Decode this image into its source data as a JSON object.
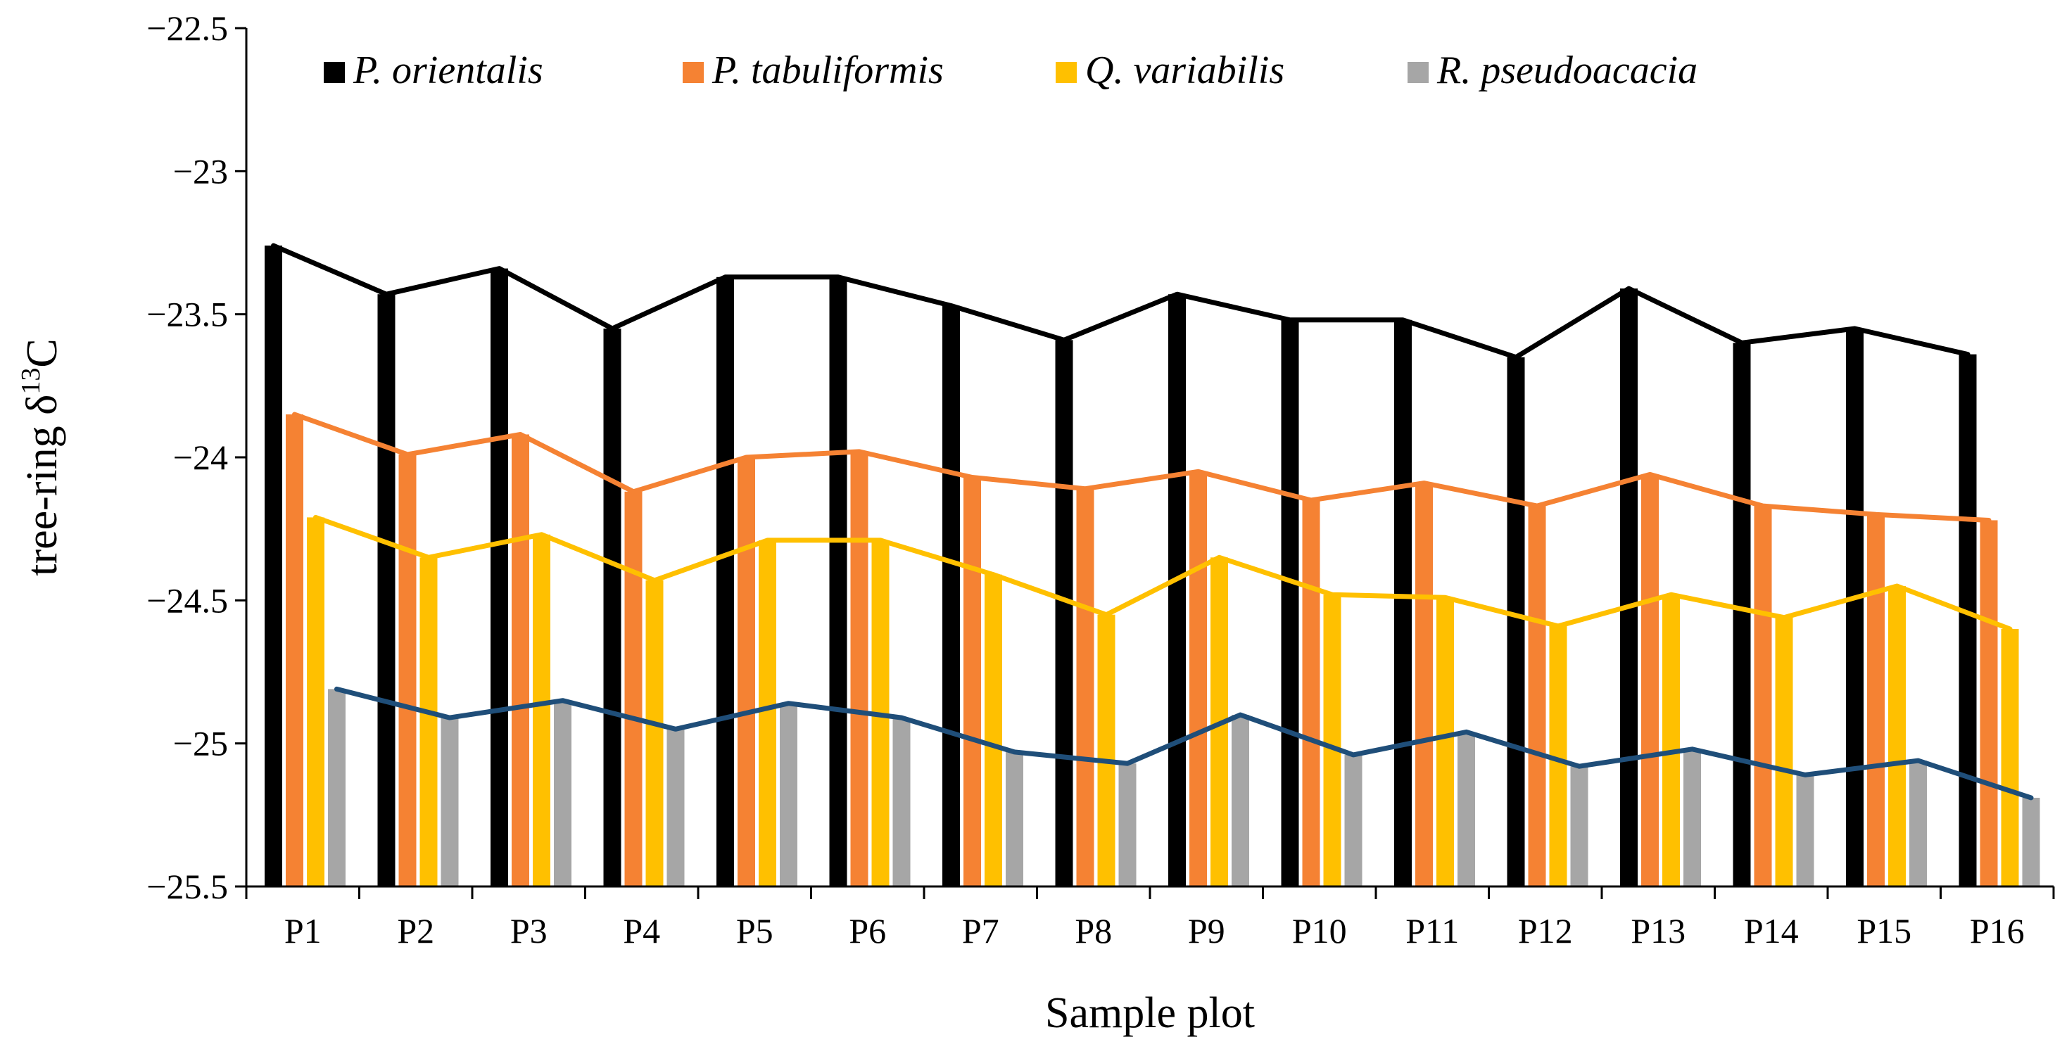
{
  "chart_data": {
    "type": "bar",
    "title": "",
    "xlabel": "Sample plot",
    "ylabel": "tree-ring δ13C",
    "ylabel_parts": {
      "prefix": "tree-ring δ",
      "superscript": "13",
      "suffix": "C"
    },
    "ylim": [
      -25.5,
      -22.5
    ],
    "yticks": [
      -22.5,
      -23,
      -23.5,
      -24,
      -24.5,
      -25,
      -25.5
    ],
    "ytick_labels": [
      "−22.5",
      "−23",
      "−23.5",
      "−24",
      "−24.5",
      "−25",
      "−25.5"
    ],
    "grid": false,
    "legend_position": "top",
    "categories": [
      "P1",
      "P2",
      "P3",
      "P4",
      "P5",
      "P6",
      "P7",
      "P8",
      "P9",
      "P10",
      "P11",
      "P12",
      "P13",
      "P14",
      "P15",
      "P16"
    ],
    "series": [
      {
        "name": "P. orientalis",
        "color": "#000000",
        "line_color": "#000000",
        "values": [
          -23.26,
          -23.43,
          -23.34,
          -23.55,
          -23.37,
          -23.37,
          -23.47,
          -23.59,
          -23.43,
          -23.52,
          -23.52,
          -23.65,
          -23.41,
          -23.6,
          -23.55,
          -23.64
        ]
      },
      {
        "name": "P. tabuliformis",
        "color": "#F58233",
        "line_color": "#F58233",
        "values": [
          -23.85,
          -23.99,
          -23.92,
          -24.12,
          -24.0,
          -23.98,
          -24.07,
          -24.11,
          -24.05,
          -24.15,
          -24.09,
          -24.17,
          -24.06,
          -24.17,
          -24.2,
          -24.22
        ]
      },
      {
        "name": "Q. variabilis",
        "color": "#FFC000",
        "line_color": "#FFC000",
        "values": [
          -24.21,
          -24.35,
          -24.27,
          -24.43,
          -24.29,
          -24.29,
          -24.41,
          -24.55,
          -24.35,
          -24.48,
          -24.49,
          -24.59,
          -24.48,
          -24.56,
          -24.45,
          -24.6
        ]
      },
      {
        "name": "R. pseudoacacia",
        "color": "#A6A6A6",
        "line_color": "#1F4E79",
        "values": [
          -24.81,
          -24.91,
          -24.85,
          -24.95,
          -24.86,
          -24.91,
          -25.03,
          -25.07,
          -24.9,
          -25.04,
          -24.96,
          -25.08,
          -25.02,
          -25.11,
          -25.06,
          -25.19
        ]
      }
    ]
  }
}
